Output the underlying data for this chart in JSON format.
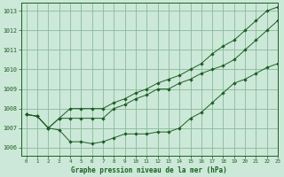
{
  "title": "Graphe pression niveau de la mer (hPa)",
  "background_color": "#cce8d8",
  "grid_color": "#88bb99",
  "line_color": "#1a6020",
  "xlim": [
    -0.5,
    23
  ],
  "ylim": [
    1005.6,
    1013.4
  ],
  "yticks": [
    1006,
    1007,
    1008,
    1009,
    1010,
    1011,
    1012,
    1013
  ],
  "xticks": [
    0,
    1,
    2,
    3,
    4,
    5,
    6,
    7,
    8,
    9,
    10,
    11,
    12,
    13,
    14,
    15,
    16,
    17,
    18,
    19,
    20,
    21,
    22,
    23
  ],
  "series": [
    [
      1007.7,
      1007.6,
      1007.0,
      1006.9,
      1006.3,
      1006.3,
      1006.2,
      1006.3,
      1006.5,
      1006.7,
      1006.7,
      1006.7,
      1006.8,
      1006.8,
      1007.0,
      1007.5,
      1007.8,
      1008.3,
      1008.8,
      1009.3,
      1009.5,
      1009.8,
      1010.1,
      1010.3
    ],
    [
      1007.7,
      1007.6,
      1007.0,
      1007.5,
      1007.5,
      1007.5,
      1007.5,
      1007.5,
      1008.0,
      1008.2,
      1008.5,
      1008.7,
      1009.0,
      1009.0,
      1009.3,
      1009.5,
      1009.8,
      1010.0,
      1010.2,
      1010.5,
      1011.0,
      1011.5,
      1012.0,
      1012.5
    ],
    [
      1007.7,
      1007.6,
      1007.0,
      1007.5,
      1008.0,
      1008.0,
      1008.0,
      1008.0,
      1008.3,
      1008.5,
      1008.8,
      1009.0,
      1009.3,
      1009.5,
      1009.7,
      1010.0,
      1010.3,
      1010.8,
      1011.2,
      1011.5,
      1012.0,
      1012.5,
      1013.0,
      1013.2
    ]
  ]
}
